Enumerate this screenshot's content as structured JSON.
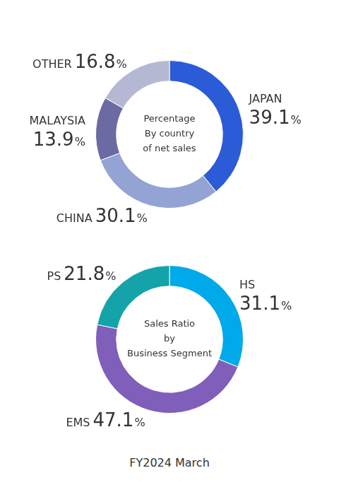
{
  "chart_data": [
    {
      "type": "doughnut",
      "title": [
        "Percentage",
        "By country",
        "of net sales"
      ],
      "categories": [
        "JAPAN",
        "CHINA",
        "MALAYSIA",
        "OTHER"
      ],
      "values": [
        39.1,
        30.1,
        13.9,
        16.8
      ],
      "value_labels": [
        "39.1%",
        "30.1%",
        "13.9%",
        "16.8%"
      ],
      "colors": [
        "#2b5bd7",
        "#93a3d4",
        "#6b6aa3",
        "#b5b8d2"
      ],
      "data_labels": true
    },
    {
      "type": "doughnut",
      "title": [
        "Sales Ratio",
        "by",
        "Business Segment"
      ],
      "categories": [
        "HS",
        "EMS",
        "PS"
      ],
      "values": [
        31.1,
        47.1,
        21.8
      ],
      "value_labels": [
        "31.1%",
        "47.1%",
        "21.8%"
      ],
      "colors": [
        "#00a9ea",
        "#7f5fba",
        "#13a3a8"
      ],
      "data_labels": true
    }
  ],
  "caption": "FY2024 March"
}
